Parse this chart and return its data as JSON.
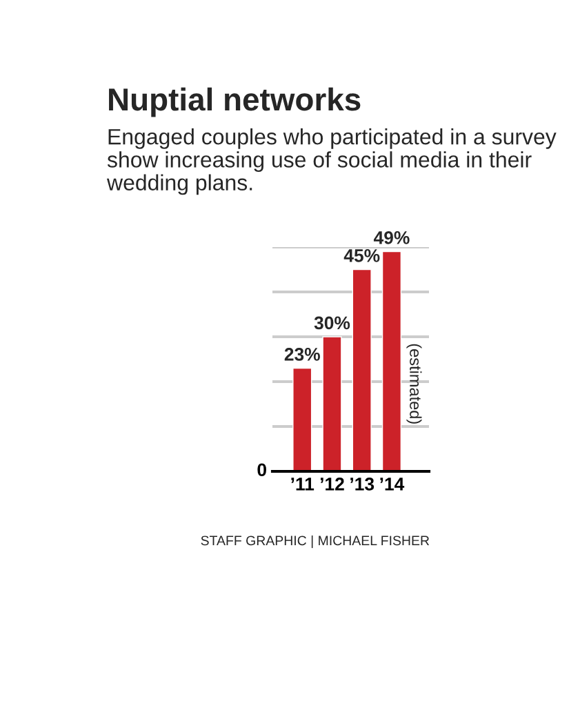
{
  "chart_data": {
    "type": "bar",
    "title": "Nuptial networks",
    "subtitle": "Engaged couples who participated in a survey show increasing use of social media in their wedding plans.",
    "categories": [
      "’11",
      "’12",
      "’13",
      "’14"
    ],
    "values": [
      23,
      30,
      45,
      49
    ],
    "color": "#cc2229",
    "value_labels": [
      "23%",
      "30%",
      "45%",
      "49%"
    ],
    "ylim": [
      0,
      50
    ],
    "yticks": [
      {
        "value": 0,
        "label": null
      },
      {
        "value": 10,
        "label": null
      },
      {
        "value": 20,
        "label": null
      },
      {
        "value": 30,
        "label": null
      },
      {
        "value": 40,
        "label": null
      },
      {
        "value": 50,
        "label": null
      }
    ],
    "grid": "y",
    "annotations": [
      "(estimated)",
      "0",
      "STAFF GRAPHIC | MICHAEL FISHER"
    ]
  }
}
